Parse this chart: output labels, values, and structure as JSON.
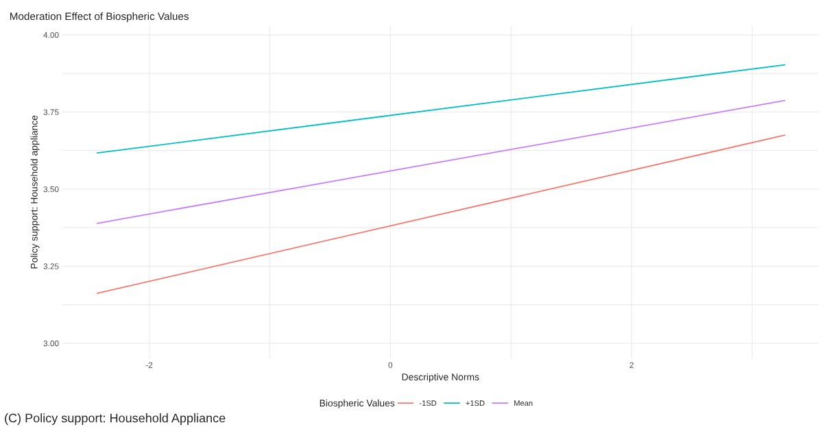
{
  "chart_data": {
    "type": "line",
    "title": "Moderation Effect of Biospheric Values",
    "xlabel": "Descriptive Norms",
    "ylabel": "Policy support: Household appliance",
    "legend_title": "Biospheric Values",
    "x": [
      -2.43,
      3.27
    ],
    "series": [
      {
        "name": "-1SD",
        "color": "#f8766d",
        "values": [
          3.162,
          3.675
        ]
      },
      {
        "name": "+1SD",
        "color": "#00bfc4",
        "values": [
          3.617,
          3.903
        ]
      },
      {
        "name": "Mean",
        "color": "#c77cff",
        "values": [
          3.389,
          3.787
        ]
      }
    ],
    "xlim": [
      -2.72,
      3.55
    ],
    "ylim": [
      2.95,
      4.03
    ],
    "xticks": [
      {
        "value": -2,
        "label": "-2"
      },
      {
        "value": -1,
        "label": null
      },
      0,
      {
        "value": 1,
        "label": null
      },
      2,
      {
        "value": 3,
        "label": null
      }
    ],
    "yticks": [
      {
        "value": 3.0,
        "label": "3.00"
      },
      {
        "value": 3.125,
        "label": null
      },
      {
        "value": 3.25,
        "label": "3.25"
      },
      {
        "value": 3.375,
        "label": null
      },
      {
        "value": 3.5,
        "label": "3.50"
      },
      {
        "value": 3.625,
        "label": null
      },
      {
        "value": 3.75,
        "label": "3.75"
      },
      {
        "value": 3.875,
        "label": null
      },
      {
        "value": 4.0,
        "label": "4.00"
      }
    ],
    "grid": true,
    "legend": "bottom",
    "marker": "none",
    "line_style": "solid",
    "annotations": [
      "(C) Policy support: Household Appliance"
    ]
  }
}
